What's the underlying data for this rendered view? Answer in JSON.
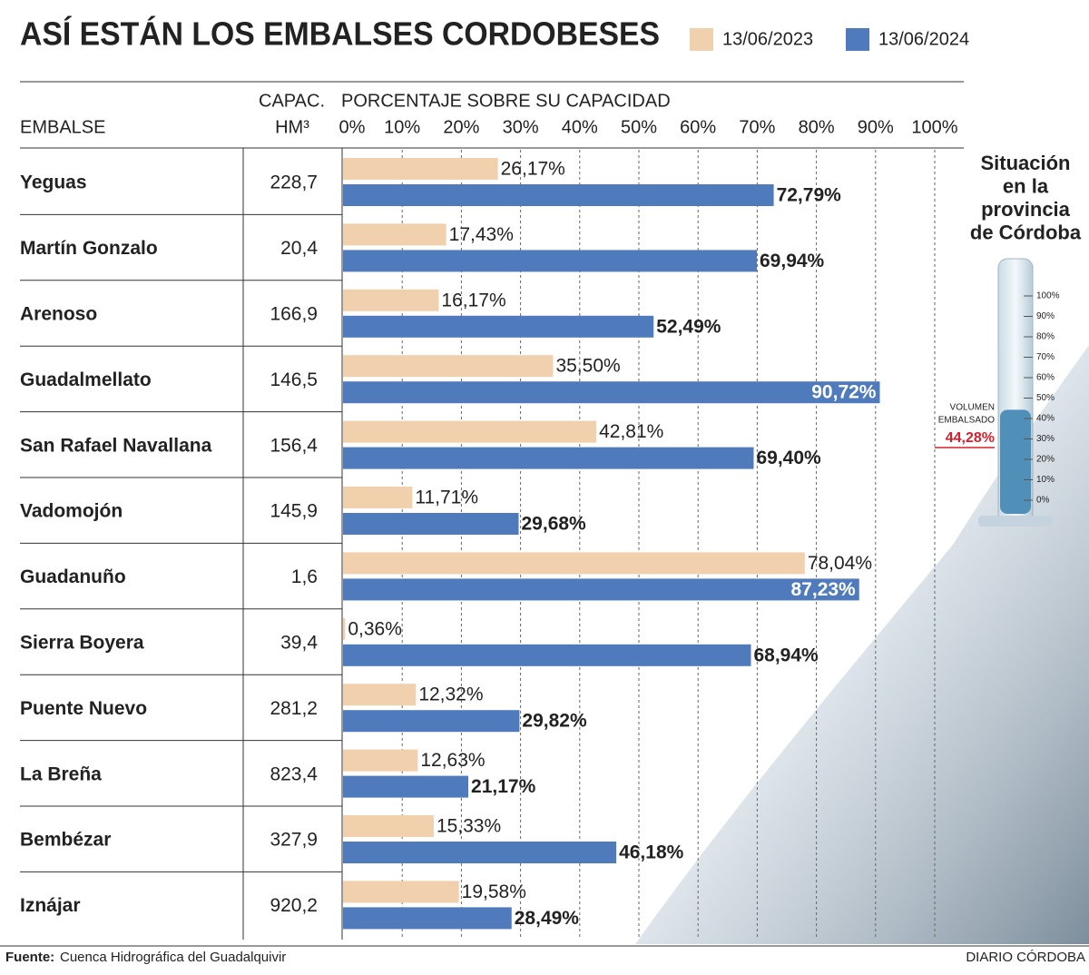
{
  "chart_data": [
    {
      "type": "bar",
      "title": "ASÍ ESTÁN LOS EMBALSES CORDOBESES",
      "column_headers": {
        "name": "EMBALSE",
        "capacity": [
          "CAPAC.",
          "HM³"
        ],
        "axis": "PORCENTAJE SOBRE SU CAPACIDAD"
      },
      "categories": [
        "Yeguas",
        "Martín Gonzalo",
        "Arenoso",
        "Guadalmellato",
        "San Rafael Navallana",
        "Vadomojón",
        "Guadanuño",
        "Sierra Boyera",
        "Puente Nuevo",
        "La Breña",
        "Bembézar",
        "Iznájar"
      ],
      "capacity": [
        "228,7",
        "20,4",
        "166,9",
        "146,5",
        "156,4",
        "145,9",
        "1,6",
        "39,4",
        "281,2",
        "823,4",
        "327,9",
        "920,2"
      ],
      "series": [
        {
          "name": "13/06/2023",
          "color": "#f1d0ae",
          "values": [
            26.17,
            17.43,
            16.17,
            35.5,
            42.81,
            11.71,
            78.04,
            0.36,
            12.32,
            12.63,
            15.33,
            19.58
          ],
          "value_labels": [
            "26,17%",
            "17,43%",
            "16,17%",
            "35,50%",
            "42,81%",
            "11,71%",
            "78,04%",
            "0,36%",
            "12,32%",
            "12,63%",
            "15,33%",
            "19,58%"
          ]
        },
        {
          "name": "13/06/2024",
          "color": "#4f7bbd",
          "values": [
            72.79,
            69.94,
            52.49,
            90.72,
            69.4,
            29.68,
            87.23,
            68.94,
            29.82,
            21.17,
            46.18,
            28.49
          ],
          "value_labels": [
            "72,79%",
            "69,94%",
            "52,49%",
            "90,72%",
            "69,40%",
            "29,68%",
            "87,23%",
            "68,94%",
            "29,82%",
            "21,17%",
            "46,18%",
            "28,49%"
          ]
        }
      ],
      "xlim": [
        0,
        100
      ],
      "xticks": [
        {
          "value": 0,
          "label": "0%"
        },
        {
          "value": 10,
          "label": "10%"
        },
        {
          "value": 20,
          "label": "20%"
        },
        {
          "value": 30,
          "label": "30%"
        },
        {
          "value": 40,
          "label": "40%"
        },
        {
          "value": 50,
          "label": "50%"
        },
        {
          "value": 60,
          "label": "60%"
        },
        {
          "value": 70,
          "label": "70%"
        },
        {
          "value": 80,
          "label": "80%"
        },
        {
          "value": 90,
          "label": "90%"
        },
        {
          "value": 100,
          "label": "100%"
        }
      ],
      "grid": true
    },
    {
      "type": "gauge",
      "title_lines": [
        "Situación",
        "en la",
        "provincia",
        "de Córdoba"
      ],
      "label_lines": [
        "VOLUMEN",
        "EMBALSADO"
      ],
      "value": 44.28,
      "value_label": "44,28%",
      "color": "#4f8fb8",
      "ylim": [
        0,
        100
      ],
      "yticks": [
        {
          "value": 0,
          "label": "0%"
        },
        {
          "value": 10,
          "label": "10%"
        },
        {
          "value": 20,
          "label": "20%"
        },
        {
          "value": 30,
          "label": "30%"
        },
        {
          "value": 40,
          "label": "40%"
        },
        {
          "value": 50,
          "label": "50%"
        },
        {
          "value": 60,
          "label": "60%"
        },
        {
          "value": 70,
          "label": "70%"
        },
        {
          "value": 80,
          "label": "80%"
        },
        {
          "value": 90,
          "label": "90%"
        },
        {
          "value": 100,
          "label": "100%"
        }
      ]
    }
  ],
  "footer": {
    "source_label": "Fuente:",
    "source": "Cuenca Hidrográfica del Guadalquivir",
    "brand": "DIARIO CÓRDOBA"
  }
}
